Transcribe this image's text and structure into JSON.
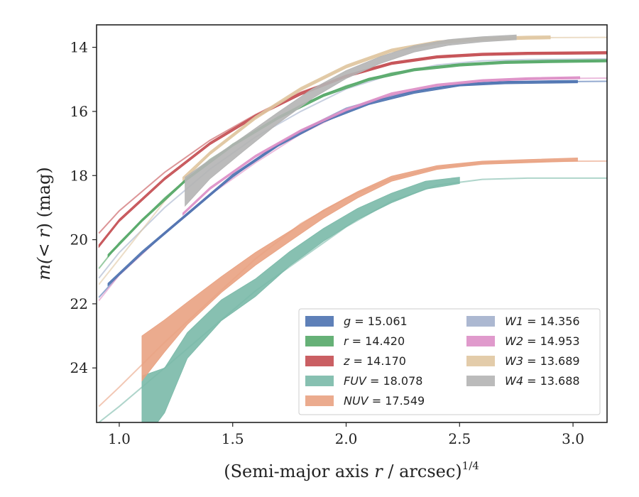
{
  "chart_data": {
    "type": "line",
    "x_axis": {
      "label_prefix": "(Semi-major axis ",
      "label_var": "r",
      "label_suffix": " / arcsec)",
      "label_power": "1/4",
      "lim": [
        0.9,
        3.15
      ],
      "ticks": [
        "1.0",
        "1.5",
        "2.0",
        "2.5",
        "3.0"
      ]
    },
    "y_axis": {
      "label_prefix": "m(",
      "label_var": "< r",
      "label_suffix": ") (mag)",
      "lim": [
        25.7,
        13.3
      ],
      "inverted": true,
      "ticks": [
        "14",
        "16",
        "18",
        "20",
        "22",
        "24"
      ]
    },
    "grid": false,
    "legend_position": "lower right",
    "series": [
      {
        "band": "g",
        "value": "= 15.061",
        "color": "#4c72b0",
        "model_x": [
          0.91,
          1.0,
          1.2,
          1.4,
          1.6,
          1.8,
          2.0,
          2.2,
          2.4,
          2.6,
          2.8,
          3.15
        ],
        "model_y": [
          21.8,
          21.1,
          19.8,
          18.6,
          17.5,
          16.6,
          15.9,
          15.5,
          15.25,
          15.12,
          15.08,
          15.06
        ],
        "data_x": [
          0.95,
          1.1,
          1.3,
          1.5,
          1.7,
          1.9,
          2.1,
          2.3,
          2.5,
          2.7,
          2.9,
          3.02
        ],
        "data_y": [
          21.4,
          20.4,
          19.2,
          18.0,
          17.05,
          16.3,
          15.75,
          15.4,
          15.17,
          15.1,
          15.08,
          15.07
        ],
        "band_width": 0.08
      },
      {
        "band": "r",
        "value": "= 14.420",
        "color": "#55a868",
        "model_x": [
          0.91,
          1.0,
          1.2,
          1.4,
          1.6,
          1.8,
          2.0,
          2.2,
          2.4,
          2.6,
          2.8,
          3.15
        ],
        "model_y": [
          20.9,
          20.1,
          18.7,
          17.5,
          16.6,
          15.8,
          15.2,
          14.8,
          14.6,
          14.5,
          14.45,
          14.42
        ],
        "data_x": [
          0.95,
          1.1,
          1.3,
          1.5,
          1.7,
          1.9,
          2.1,
          2.3,
          2.5,
          2.7,
          2.9,
          3.15
        ],
        "data_y": [
          20.5,
          19.4,
          18.1,
          17.05,
          16.2,
          15.5,
          15.0,
          14.7,
          14.55,
          14.47,
          14.44,
          14.42
        ],
        "band_width": 0.08
      },
      {
        "band": "z",
        "value": "= 14.170",
        "color": "#c44e52",
        "model_x": [
          0.91,
          1.0,
          1.2,
          1.4,
          1.6,
          1.8,
          2.0,
          2.2,
          2.4,
          2.6,
          2.8,
          3.15
        ],
        "model_y": [
          19.8,
          19.1,
          17.9,
          16.9,
          16.1,
          15.4,
          14.9,
          14.5,
          14.3,
          14.22,
          14.19,
          14.17
        ],
        "data_x": [
          0.91,
          1.0,
          1.2,
          1.4,
          1.6,
          1.8,
          2.0,
          2.2,
          2.4,
          2.6,
          2.8,
          3.15
        ],
        "data_y": [
          20.2,
          19.4,
          18.1,
          17.0,
          16.15,
          15.45,
          14.9,
          14.5,
          14.3,
          14.22,
          14.19,
          14.17
        ],
        "band_width": 0.08
      },
      {
        "band": "FUV",
        "value": "= 18.078",
        "color": "#7ab9a8",
        "model_x": [
          0.91,
          1.0,
          1.2,
          1.4,
          1.6,
          1.8,
          2.0,
          2.2,
          2.4,
          2.6,
          2.8,
          3.15
        ],
        "model_y": [
          25.7,
          25.2,
          24.0,
          22.8,
          21.6,
          20.6,
          19.6,
          18.8,
          18.3,
          18.12,
          18.08,
          18.08
        ],
        "data_x": [
          1.1,
          1.2,
          1.3,
          1.45,
          1.6,
          1.75,
          1.9,
          2.05,
          2.2,
          2.35,
          2.5
        ],
        "data_y": [
          25.3,
          24.7,
          23.3,
          22.2,
          21.5,
          20.6,
          19.85,
          19.2,
          18.7,
          18.3,
          18.15
        ],
        "data_w": [
          2.1,
          1.4,
          0.8,
          0.65,
          0.55,
          0.45,
          0.4,
          0.35,
          0.3,
          0.25,
          0.2
        ]
      },
      {
        "band": "NUV",
        "value": "= 17.549",
        "color": "#e9a282",
        "model_x": [
          0.91,
          1.0,
          1.2,
          1.4,
          1.6,
          1.8,
          2.0,
          2.2,
          2.4,
          2.6,
          2.8,
          3.15
        ],
        "model_y": [
          25.2,
          24.6,
          23.2,
          21.9,
          20.6,
          19.5,
          18.7,
          18.1,
          17.75,
          17.6,
          17.56,
          17.55
        ],
        "data_x": [
          1.1,
          1.2,
          1.3,
          1.45,
          1.6,
          1.75,
          1.9,
          2.05,
          2.2,
          2.4,
          2.6,
          2.8,
          3.02
        ],
        "data_y": [
          23.7,
          23.0,
          22.3,
          21.4,
          20.6,
          19.9,
          19.2,
          18.6,
          18.1,
          17.75,
          17.6,
          17.55,
          17.5
        ],
        "data_w": [
          1.4,
          1.0,
          0.7,
          0.5,
          0.4,
          0.32,
          0.26,
          0.2,
          0.16,
          0.12,
          0.1,
          0.1,
          0.1
        ]
      },
      {
        "band": "W1",
        "value": "= 14.356",
        "color": "#a3b0cc",
        "model_x": [
          0.91,
          1.0,
          1.2,
          1.4,
          1.6,
          1.8,
          2.0,
          2.2,
          2.4,
          2.6,
          2.8,
          3.15
        ],
        "model_y": [
          21.2,
          20.4,
          19.0,
          17.8,
          16.8,
          16.0,
          15.3,
          14.85,
          14.55,
          14.42,
          14.38,
          14.36
        ],
        "data_x": [],
        "data_y": [],
        "band_width": 0.08
      },
      {
        "band": "W2",
        "value": "= 14.953",
        "color": "#dd8fc7",
        "model_x": [
          0.91,
          1.0,
          1.2,
          1.4,
          1.6,
          1.8,
          2.0,
          2.2,
          2.4,
          2.6,
          2.8,
          3.15
        ],
        "model_y": [
          21.9,
          21.1,
          19.8,
          18.6,
          17.6,
          16.7,
          16.0,
          15.5,
          15.2,
          15.05,
          14.98,
          14.96
        ],
        "data_x": [
          1.28,
          1.4,
          1.6,
          1.8,
          2.0,
          2.2,
          2.4,
          2.6,
          2.8,
          3.03
        ],
        "data_y": [
          19.2,
          18.4,
          17.4,
          16.6,
          15.95,
          15.45,
          15.18,
          15.04,
          14.98,
          14.95
        ],
        "band_width": 0.07
      },
      {
        "band": "W3",
        "value": "= 13.689",
        "color": "#e0c7a1",
        "model_x": [
          0.91,
          1.0,
          1.2,
          1.4,
          1.6,
          1.8,
          2.0,
          2.2,
          2.4,
          2.6,
          2.8,
          3.15
        ],
        "model_y": [
          21.4,
          20.6,
          18.8,
          17.3,
          16.2,
          15.3,
          14.6,
          14.1,
          13.85,
          13.74,
          13.7,
          13.69
        ],
        "data_x": [
          1.28,
          1.4,
          1.6,
          1.8,
          2.0,
          2.2,
          2.4,
          2.6,
          2.8,
          2.9
        ],
        "data_y": [
          18.1,
          17.3,
          16.2,
          15.3,
          14.6,
          14.1,
          13.85,
          13.74,
          13.7,
          13.69
        ],
        "band_width": 0.1
      },
      {
        "band": "W4",
        "value": "= 13.688",
        "color": "#b4b4b4",
        "model_x": [],
        "model_y": [],
        "data_x": [
          1.29,
          1.4,
          1.55,
          1.7,
          1.85,
          2.0,
          2.15,
          2.3,
          2.45,
          2.6,
          2.75
        ],
        "data_y": [
          18.5,
          17.8,
          17.0,
          16.2,
          15.45,
          14.85,
          14.4,
          14.05,
          13.85,
          13.75,
          13.69
        ],
        "data_w": [
          0.9,
          0.6,
          0.45,
          0.35,
          0.3,
          0.25,
          0.22,
          0.2,
          0.18,
          0.16,
          0.15
        ]
      }
    ]
  }
}
